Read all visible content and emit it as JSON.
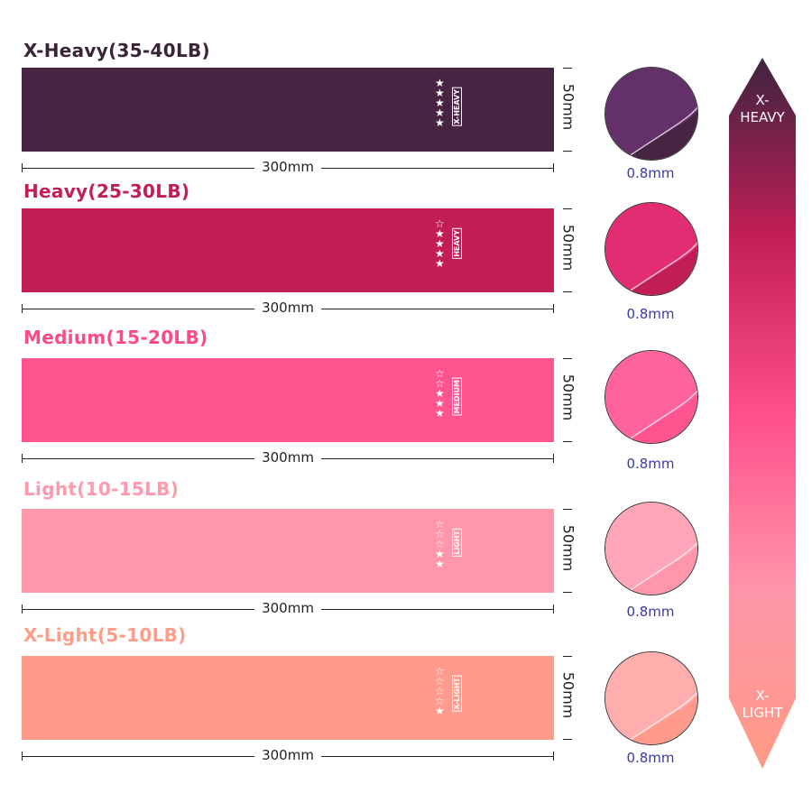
{
  "bands": [
    {
      "title": "X-Heavy(35-40LB)",
      "tag": "X-HEAVY",
      "stars_filled": 5,
      "stars_total": 5,
      "length": "300mm",
      "width": "50mm",
      "thickness": "0.8mm",
      "color": "#472542",
      "title_color": "#3a2438",
      "hi": "#7a3a8a"
    },
    {
      "title": "Heavy(25-30LB)",
      "tag": "HEAVY",
      "stars_filled": 4,
      "stars_total": 5,
      "length": "300mm",
      "width": "50mm",
      "thickness": "0.8mm",
      "color": "#c21e56",
      "title_color": "#c21e56",
      "hi": "#ff3a8a"
    },
    {
      "title": "Medium(15-20LB)",
      "tag": "MEDIUM",
      "stars_filled": 3,
      "stars_total": 5,
      "length": "300mm",
      "width": "50mm",
      "thickness": "0.8mm",
      "color": "#ff5490",
      "title_color": "#ff4a88",
      "hi": "#ff6fa8"
    },
    {
      "title": "Light(10-15LB)",
      "tag": "LIGHT",
      "stars_filled": 2,
      "stars_total": 5,
      "length": "300mm",
      "width": "50mm",
      "thickness": "0.8mm",
      "color": "#ff96aa",
      "title_color": "#ff99ad",
      "hi": "#ffb2c2"
    },
    {
      "title": "X-Light(5-10LB)",
      "tag": "X-LIGHT",
      "stars_filled": 1,
      "stars_total": 5,
      "length": "300mm",
      "width": "50mm",
      "thickness": "0.8mm",
      "color": "#ff9a8c",
      "title_color": "#ff9e88",
      "hi": "#ffc0c8"
    }
  ],
  "scale": {
    "top_l1": "X-",
    "top_l2": "HEAVY",
    "bottom_l1": "X-",
    "bottom_l2": "LIGHT"
  }
}
